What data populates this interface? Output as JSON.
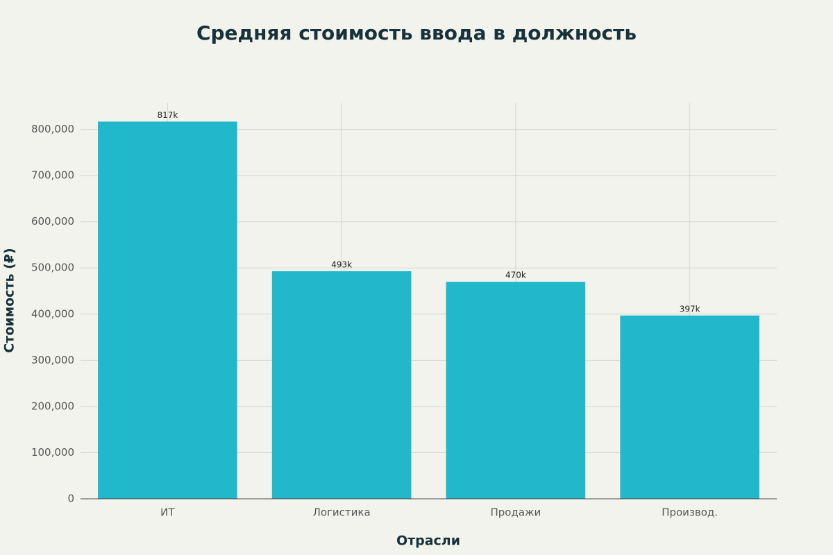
{
  "chart_data": {
    "type": "bar",
    "title": "Средняя стоимость ввода в должность",
    "x_label": "Отрасли",
    "y_label": "Стоимость (₽)",
    "categories": [
      "ИТ",
      "Логистика",
      "Продажи",
      "Производ."
    ],
    "values": [
      817000,
      493000,
      470000,
      397000
    ],
    "value_labels": [
      "817k",
      "493k",
      "470k",
      "397k"
    ],
    "color": "#21b8cc",
    "ylim": [
      0,
      858000
    ],
    "yticks": [
      0,
      {
        "value": 100000,
        "label": "100,000"
      },
      {
        "value": 200000,
        "label": "200,000"
      },
      {
        "value": 300000,
        "label": "300,000"
      },
      {
        "value": 400000,
        "label": "400,000"
      },
      {
        "value": 500000,
        "label": "500,000"
      },
      {
        "value": 600000,
        "label": "600,000"
      },
      {
        "value": 700000,
        "label": "700,000"
      },
      {
        "value": 800000,
        "label": "800,000"
      }
    ],
    "grid": true
  }
}
